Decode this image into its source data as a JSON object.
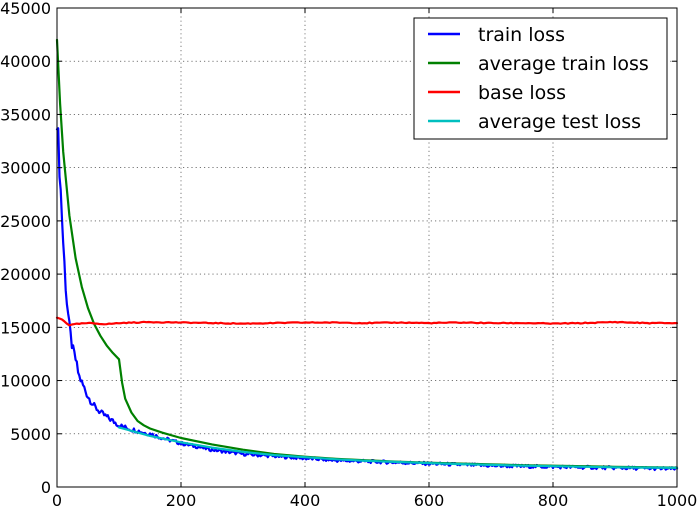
{
  "chart_data": {
    "type": "line",
    "title": "",
    "xlabel": "",
    "ylabel": "",
    "xlim": [
      0,
      1000
    ],
    "ylim": [
      0,
      45000
    ],
    "x_ticks": [
      "0",
      "200",
      "400",
      "600",
      "800",
      "1000"
    ],
    "y_ticks": [
      "0",
      "5000",
      "10000",
      "15000",
      "20000",
      "25000",
      "30000",
      "35000",
      "40000",
      "45000"
    ],
    "grid": true,
    "legend_position": "top-right",
    "series": [
      {
        "name": "train loss",
        "color": "#0000ff",
        "x": [
          0,
          5,
          10,
          15,
          20,
          25,
          30,
          35,
          40,
          50,
          60,
          70,
          80,
          90,
          100,
          110,
          120,
          130,
          140,
          150,
          170,
          200,
          250,
          300,
          350,
          400,
          450,
          500,
          550,
          600,
          650,
          700,
          750,
          800,
          850,
          900,
          950,
          1000
        ],
        "y": [
          35000,
          29000,
          23000,
          18000,
          15000,
          13000,
          12000,
          10500,
          9800,
          8500,
          7600,
          7000,
          6600,
          6200,
          5800,
          5600,
          5400,
          5300,
          5100,
          5000,
          4600,
          4100,
          3500,
          3100,
          2900,
          2700,
          2500,
          2400,
          2300,
          2200,
          2100,
          2000,
          1950,
          1900,
          1850,
          1800,
          1750,
          1700
        ]
      },
      {
        "name": "average train loss",
        "color": "#008000",
        "x": [
          0,
          5,
          10,
          20,
          30,
          40,
          50,
          60,
          70,
          80,
          90,
          100,
          105,
          110,
          120,
          130,
          140,
          150,
          170,
          200,
          250,
          300,
          350,
          400,
          450,
          500,
          550,
          600,
          650,
          700,
          750,
          800,
          850,
          900,
          950,
          1000
        ],
        "y": [
          42000,
          36000,
          31500,
          25500,
          21500,
          18800,
          16800,
          15300,
          14200,
          13300,
          12600,
          12000,
          9800,
          8300,
          7000,
          6200,
          5800,
          5500,
          5100,
          4600,
          4000,
          3500,
          3100,
          2850,
          2650,
          2500,
          2380,
          2280,
          2200,
          2120,
          2050,
          2000,
          1950,
          1900,
          1860,
          1820
        ]
      },
      {
        "name": "base loss",
        "color": "#ff0000",
        "x": [
          0,
          5,
          10,
          15,
          20,
          30,
          50,
          80,
          100,
          150,
          200,
          250,
          300,
          350,
          400,
          450,
          500,
          550,
          600,
          650,
          700,
          750,
          800,
          850,
          900,
          950,
          1000
        ],
        "y": [
          15900,
          15800,
          15700,
          15400,
          15200,
          15300,
          15400,
          15300,
          15400,
          15500,
          15450,
          15400,
          15350,
          15400,
          15450,
          15450,
          15400,
          15450,
          15400,
          15450,
          15400,
          15400,
          15350,
          15400,
          15500,
          15400,
          15400
        ]
      },
      {
        "name": "average test loss",
        "color": "#00bfbf",
        "x": [
          100,
          150,
          200,
          250,
          300,
          350,
          400,
          450,
          500,
          550,
          600,
          650,
          700,
          750,
          800,
          850,
          900,
          950,
          1000
        ],
        "y": [
          5600,
          4800,
          4200,
          3700,
          3300,
          3000,
          2800,
          2600,
          2450,
          2350,
          2250,
          2150,
          2080,
          2000,
          1950,
          1900,
          1850,
          1820,
          1800
        ]
      }
    ]
  }
}
